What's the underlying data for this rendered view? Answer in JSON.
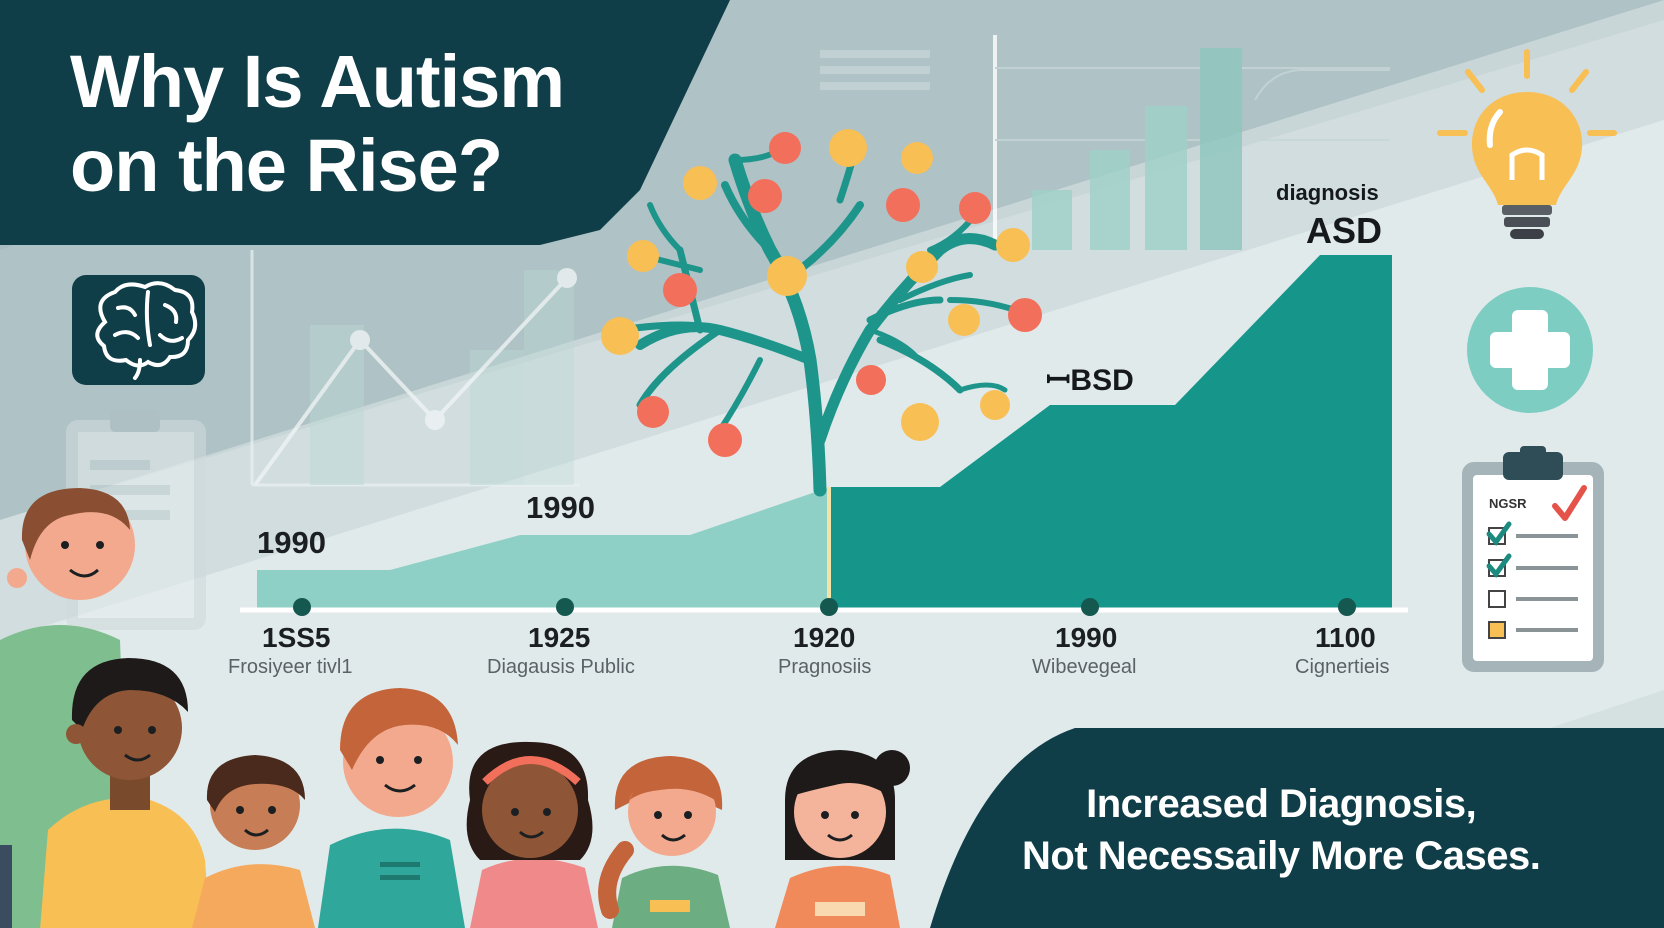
{
  "title_line1": "Why Is Autism",
  "title_line2": "on the Rise?",
  "top_labels": {
    "diagnosis": "diagnosis",
    "asd": "ASD",
    "fbsd": "ꟷBSD"
  },
  "step_years": {
    "left": "1990",
    "middle": "1990"
  },
  "timeline": [
    {
      "year": "1SS5",
      "label": "Frosiyeer tivl1"
    },
    {
      "year": "1925",
      "label": "Diagausis Public"
    },
    {
      "year": "1920",
      "label": "Pragnosiis"
    },
    {
      "year": "1990",
      "label": "Wibevegeal"
    },
    {
      "year": "1100",
      "label": "Cignertieis"
    }
  ],
  "clipboard_label": "NGSR",
  "bottom_line1": "Increased Diagnosis,",
  "bottom_line2": "Not Necessaily More Cases.",
  "icons": [
    "brain-icon",
    "lightbulb-icon",
    "medical-cross-icon",
    "clipboard-checklist-icon",
    "tree-icon"
  ],
  "colors": {
    "dark_teal": "#103e48",
    "teal": "#16968a",
    "light_teal": "#8fd0c6",
    "orange": "#f26f5b",
    "yellow": "#f8bf55"
  }
}
